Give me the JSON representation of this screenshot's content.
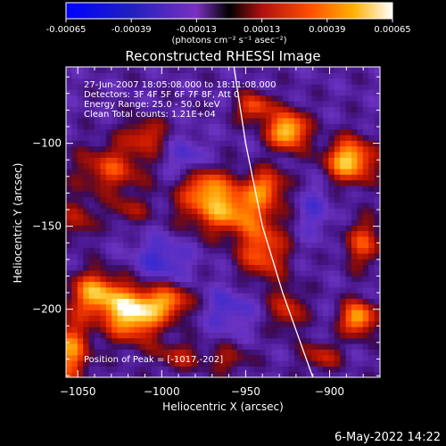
{
  "colorbar": {
    "tick_labels": [
      "-0.00065",
      "-0.00039",
      "-0.00013",
      "0.00013",
      "0.00039",
      "0.00065"
    ],
    "min": -0.00065,
    "max": 0.00065,
    "unit_label": "(photons cm⁻² s⁻¹ asec⁻²)"
  },
  "chart_data": {
    "type": "heatmap",
    "title": "Reconstructed RHESSI Image",
    "xlabel": "Heliocentric X (arcsec)",
    "ylabel": "Heliocentric Y (arcsec)",
    "xlim": [
      -1057,
      -870
    ],
    "ylim": [
      -241,
      -54
    ],
    "x_ticks": [
      -1050,
      -1000,
      -950,
      -900
    ],
    "y_ticks": [
      -100,
      -150,
      -200
    ],
    "x_tick_labels": [
      "−1050",
      "−1000",
      "−950",
      "−900"
    ],
    "y_tick_labels": [
      "−100",
      "−150",
      "−200"
    ],
    "info_lines": [
      "27-Jun-2007 18:05:08.000 to 18:11:08.000",
      "Detectors: 3F 4F 5F 6F 7F 8F, Att 0",
      "Energy Range: 25.0 - 50.0 keV",
      "Clean      Total counts: 1.21E+04"
    ],
    "peak_label": "Position of Peak = [-1017,-202]",
    "peak_position": [
      -1017,
      -202
    ],
    "limb_curve": [
      [
        -957,
        -54
      ],
      [
        -950,
        -100
      ],
      [
        -940,
        -150
      ],
      [
        -928,
        -190
      ],
      [
        -910,
        -241
      ]
    ],
    "blobs": [
      {
        "x": -1017,
        "y": -202,
        "sx": 12,
        "sy": 11,
        "a": 1.0
      },
      {
        "x": -1040,
        "y": -190,
        "sx": 10,
        "sy": 9,
        "a": 0.75
      },
      {
        "x": -995,
        "y": -195,
        "sx": 9,
        "sy": 7,
        "a": 0.6
      },
      {
        "x": -1055,
        "y": -225,
        "sx": 8,
        "sy": 14,
        "a": 0.7
      },
      {
        "x": -960,
        "y": -140,
        "sx": 18,
        "sy": 10,
        "a": 0.75
      },
      {
        "x": -975,
        "y": -125,
        "sx": 10,
        "sy": 8,
        "a": 0.6
      },
      {
        "x": -940,
        "y": -165,
        "sx": 10,
        "sy": 12,
        "a": 0.6
      },
      {
        "x": -925,
        "y": -200,
        "sx": 7,
        "sy": 9,
        "a": 0.45
      },
      {
        "x": -925,
        "y": -92,
        "sx": 8,
        "sy": 8,
        "a": 0.95
      },
      {
        "x": -945,
        "y": -78,
        "sx": 7,
        "sy": 6,
        "a": 0.6
      },
      {
        "x": -938,
        "y": -125,
        "sx": 9,
        "sy": 7,
        "a": 0.55
      },
      {
        "x": -888,
        "y": -110,
        "sx": 10,
        "sy": 9,
        "a": 0.9
      },
      {
        "x": -880,
        "y": -160,
        "sx": 8,
        "sy": 10,
        "a": 0.5
      },
      {
        "x": -883,
        "y": -205,
        "sx": 7,
        "sy": 7,
        "a": 0.85
      },
      {
        "x": -1030,
        "y": -115,
        "sx": 14,
        "sy": 10,
        "a": 0.5
      },
      {
        "x": -1010,
        "y": -95,
        "sx": 9,
        "sy": 7,
        "a": 0.45
      },
      {
        "x": -1050,
        "y": -145,
        "sx": 7,
        "sy": 9,
        "a": 0.35
      },
      {
        "x": -1020,
        "y": -140,
        "sx": 8,
        "sy": 6,
        "a": 0.3
      },
      {
        "x": -990,
        "y": -228,
        "sx": 10,
        "sy": 6,
        "a": 0.35
      },
      {
        "x": -905,
        "y": -228,
        "sx": 8,
        "sy": 6,
        "a": 0.4
      },
      {
        "x": -960,
        "y": -230,
        "sx": 9,
        "sy": 6,
        "a": 0.3
      },
      {
        "x": -985,
        "y": -110,
        "sx": 8,
        "sy": 10,
        "a": -0.3
      },
      {
        "x": -1000,
        "y": -170,
        "sx": 12,
        "sy": 10,
        "a": -0.35
      },
      {
        "x": -960,
        "y": -200,
        "sx": 10,
        "sy": 10,
        "a": -0.3
      },
      {
        "x": -910,
        "y": -140,
        "sx": 8,
        "sy": 12,
        "a": -0.25
      }
    ]
  },
  "footer": {
    "date_stamp": "6-May-2022 14:22"
  }
}
